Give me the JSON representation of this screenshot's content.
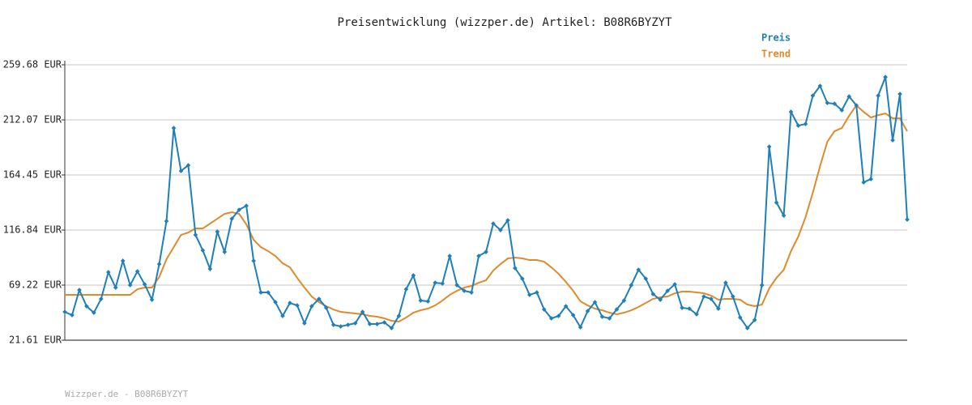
{
  "chart_data": {
    "type": "line",
    "title": "Preisentwicklung (wizzper.de) Artikel: B08R6BYZYT",
    "footer": "Wizzper.de - B08R6BYZYT",
    "ylim": [
      21.61,
      259.68
    ],
    "yticks": [
      {
        "value": 21.61,
        "label": "21.61 EUR"
      },
      {
        "value": 69.22,
        "label": "69.22 EUR"
      },
      {
        "value": 116.84,
        "label": "116.84 EUR"
      },
      {
        "value": 164.45,
        "label": "164.45 EUR"
      },
      {
        "value": 212.07,
        "label": "212.07 EUR"
      },
      {
        "value": 259.68,
        "label": "259.68 EUR"
      }
    ],
    "grid": true,
    "legend": "top-right",
    "series": [
      {
        "name": "Preis",
        "color": "#1f7fb8",
        "markers": true,
        "values": [
          46.1,
          43.3,
          65.0,
          51.0,
          45.4,
          57.3,
          80.4,
          67.1,
          90.2,
          69.2,
          81.1,
          69.9,
          56.6,
          87.4,
          124.5,
          205.0,
          167.9,
          172.8,
          112.6,
          99.3,
          83.2,
          115.4,
          97.9,
          126.6,
          134.3,
          137.8,
          90.2,
          62.9,
          62.9,
          54.5,
          42.6,
          53.8,
          51.7,
          36.3,
          51.0,
          57.3,
          49.6,
          34.9,
          33.5,
          34.9,
          36.3,
          46.1,
          35.6,
          35.6,
          37.0,
          32.1,
          42.6,
          65.7,
          77.6,
          55.9,
          55.2,
          71.3,
          70.6,
          94.4,
          69.2,
          64.3,
          62.9,
          94.4,
          97.9,
          122.4,
          116.8,
          125.2,
          83.9,
          74.8,
          60.8,
          62.9,
          48.2,
          40.5,
          42.6,
          51.0,
          43.3,
          32.8,
          46.8,
          54.5,
          41.9,
          40.5,
          48.2,
          55.9,
          69.2,
          82.5,
          74.8,
          61.5,
          56.6,
          64.3,
          69.9,
          49.6,
          48.9,
          44.0,
          59.4,
          57.3,
          48.9,
          71.3,
          59.4,
          41.2,
          32.1,
          39.1,
          69.2,
          188.9,
          140.6,
          129.4,
          219.0,
          207.1,
          208.5,
          233.0,
          241.4,
          226.7,
          226.0,
          220.4,
          232.3,
          224.6,
          158.1,
          160.9,
          233.0,
          249.1,
          194.5,
          234.4,
          125.9
        ]
      },
      {
        "name": "Trend",
        "color": "#de8b2c",
        "markers": false,
        "values": [
          60.8,
          60.8,
          60.8,
          60.8,
          60.8,
          60.8,
          60.8,
          60.8,
          60.8,
          60.8,
          65.7,
          67.1,
          67.1,
          76.2,
          91.6,
          102.1,
          112.6,
          114.7,
          118.2,
          118.2,
          122.4,
          126.6,
          130.8,
          132.2,
          130.8,
          121.7,
          108.4,
          102.1,
          98.6,
          94.4,
          88.1,
          84.6,
          75.5,
          67.1,
          59.4,
          54.5,
          51.0,
          48.2,
          46.1,
          45.4,
          44.7,
          44.0,
          42.6,
          41.9,
          40.5,
          38.4,
          37.7,
          41.2,
          45.4,
          47.5,
          48.9,
          51.7,
          55.9,
          60.8,
          64.3,
          67.1,
          68.5,
          71.3,
          73.4,
          81.8,
          87.4,
          92.3,
          93.0,
          92.3,
          90.9,
          90.9,
          89.5,
          84.6,
          79.0,
          72.0,
          64.3,
          55.2,
          51.7,
          48.9,
          47.5,
          45.4,
          44.0,
          45.4,
          47.5,
          50.3,
          53.8,
          57.3,
          58.7,
          59.4,
          62.2,
          63.6,
          63.6,
          62.9,
          62.2,
          60.1,
          56.6,
          57.3,
          57.3,
          56.6,
          52.4,
          51.0,
          52.4,
          66.4,
          75.5,
          82.5,
          98.6,
          111.2,
          128.0,
          149.0,
          172.1,
          193.2,
          202.3,
          205.0,
          215.6,
          224.6,
          219.0,
          214.1,
          216.2,
          217.6,
          213.4,
          213.4,
          202.3
        ]
      }
    ]
  }
}
